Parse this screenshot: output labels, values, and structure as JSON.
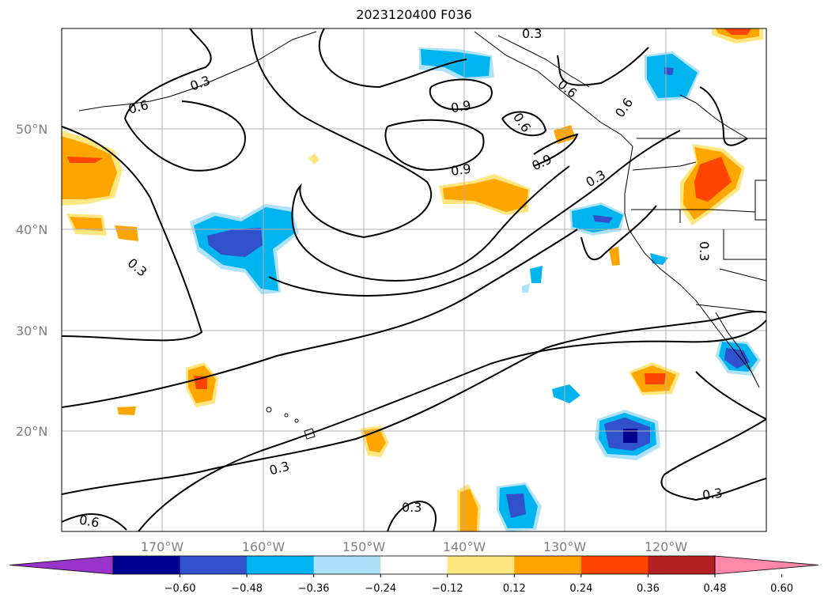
{
  "title": "2023120400 F036",
  "lat_labels": [
    "50°N",
    "40°N",
    "30°N",
    "20°N"
  ],
  "lon_labels": [
    "170°W",
    "160°W",
    "150°W",
    "140°W",
    "130°W",
    "120°W"
  ],
  "contour_labels": [
    "0.3",
    "0.6",
    "0.9",
    "0.9",
    "0.3",
    "0.6",
    "0.3",
    "0.9",
    "0.6",
    "0.3",
    "0.3",
    "0.3",
    "0.3",
    "0.6",
    "0.3",
    "0.6"
  ],
  "colorbar": {
    "ticks": [
      "−0.60",
      "−0.48",
      "−0.36",
      "−0.24",
      "−0.12",
      "0.12",
      "0.24",
      "0.36",
      "0.48",
      "0.60"
    ],
    "colors": [
      "#9933cc",
      "#000090",
      "#3050cc",
      "#00b4f0",
      "#aee2f8",
      "#ffffff",
      "#ffe680",
      "#ffa500",
      "#ff4500",
      "#b22222",
      "#ff88aa"
    ]
  },
  "anomaly_colors": {
    "orange": "#ffa500",
    "yellow": "#ffe680",
    "red": "#ff4500",
    "cyan": "#00b4f0",
    "lightblue": "#aee2f8",
    "blue": "#3050cc",
    "navy": "#000090"
  }
}
